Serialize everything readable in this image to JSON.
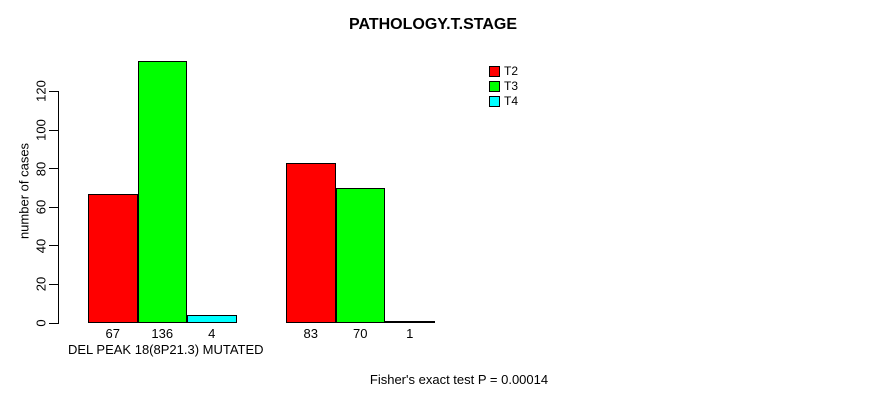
{
  "chart_data": {
    "type": "bar",
    "title": "PATHOLOGY.T.STAGE",
    "ylabel": "number of cases",
    "xlabel": "DEL PEAK 18(8P21.3) MUTATED",
    "categories": [
      "DEL PEAK 18(8P21.3) MUTATED",
      ""
    ],
    "series": [
      {
        "name": "T2",
        "color": "#ff0000",
        "values": [
          67,
          83
        ]
      },
      {
        "name": "T3",
        "color": "#00ff00",
        "values": [
          136,
          70
        ]
      },
      {
        "name": "T4",
        "color": "#00ffff",
        "values": [
          4,
          1
        ]
      }
    ],
    "bar_value_labels": [
      [
        67,
        136,
        4
      ],
      [
        83,
        70,
        1
      ]
    ],
    "yticks": [
      0,
      20,
      40,
      60,
      80,
      100,
      120
    ],
    "ylim": [
      0,
      140
    ],
    "grid": false,
    "legend_position": "top-right",
    "background_color": "#ffffff",
    "text_color": "#000000"
  },
  "footer": {
    "stat_text": "Fisher's exact test P = 0.00014"
  }
}
